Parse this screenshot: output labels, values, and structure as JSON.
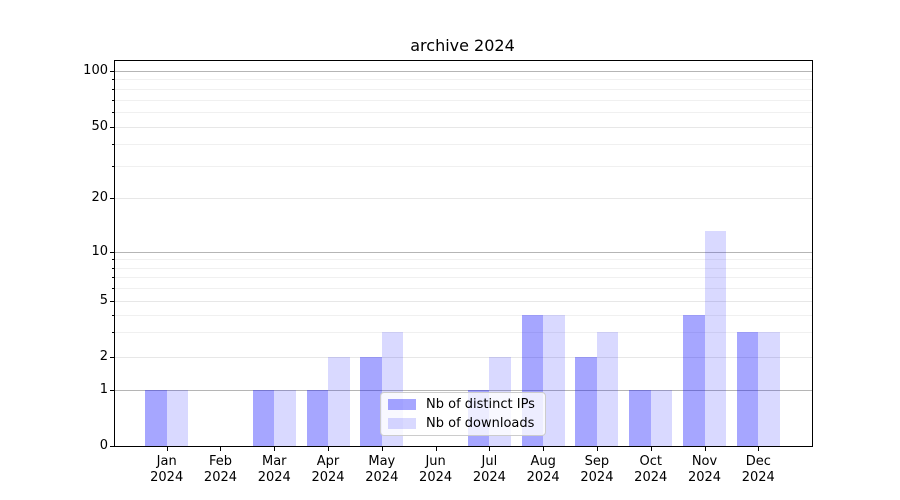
{
  "chart_data": {
    "type": "bar",
    "title": "archive 2024",
    "categories": [
      "Jan",
      "Feb",
      "Mar",
      "Apr",
      "May",
      "Jun",
      "Jul",
      "Aug",
      "Sep",
      "Oct",
      "Nov",
      "Dec"
    ],
    "category_year": "2024",
    "series": [
      {
        "name": "Nb of distinct IPs",
        "color": "rgba(0,0,255,0.35)",
        "values": [
          1,
          0,
          1,
          1,
          2,
          0,
          1,
          4,
          2,
          1,
          4,
          3
        ]
      },
      {
        "name": "Nb of downloads",
        "color": "rgba(0,0,255,0.15)",
        "values": [
          1,
          0,
          1,
          2,
          3,
          0,
          2,
          4,
          3,
          1,
          13,
          3
        ]
      }
    ],
    "yticks": [
      0,
      1,
      2,
      5,
      10,
      20,
      50,
      100
    ],
    "y_minor_gridlines": [
      3,
      4,
      6,
      7,
      8,
      9,
      30,
      40,
      60,
      70,
      80,
      90
    ],
    "ylim": [
      0,
      100
    ],
    "xlabel": "",
    "ylabel": "",
    "scale": "symlog-like",
    "grid": "on",
    "legend_position": "lower center"
  }
}
